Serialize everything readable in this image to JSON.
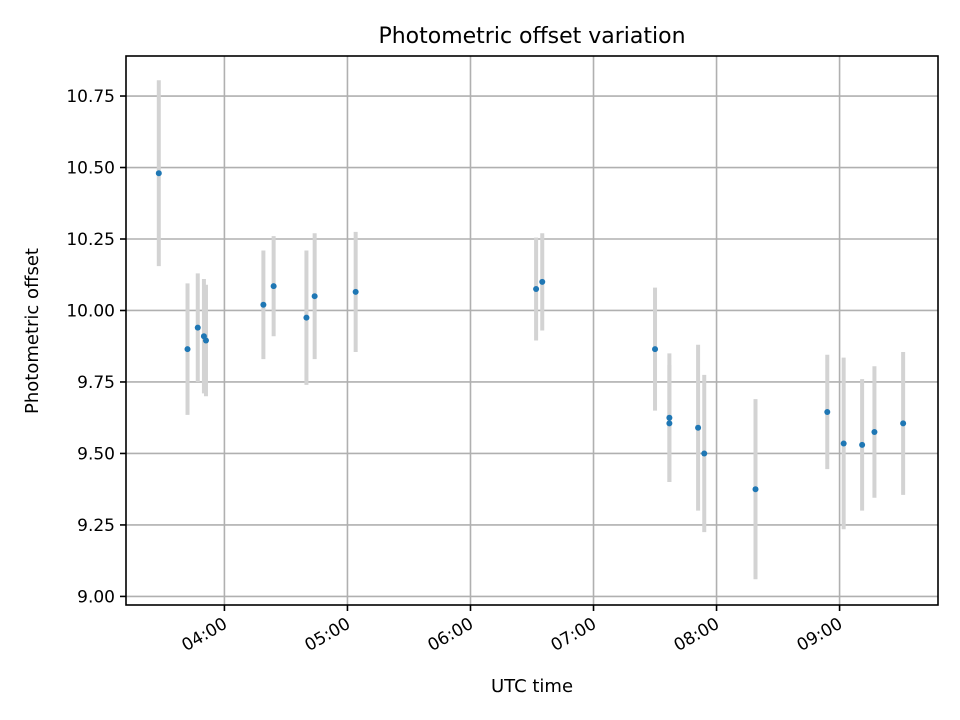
{
  "chart_data": {
    "type": "scatter",
    "title": "Photometric offset variation",
    "xlabel": "UTC time",
    "ylabel": "Photometric offset",
    "xlim": [
      "03:12",
      "09:48"
    ],
    "ylim": [
      8.97,
      10.89
    ],
    "xticks": [
      "04:00",
      "05:00",
      "06:00",
      "07:00",
      "08:00",
      "09:00"
    ],
    "yticks": [
      "9.00",
      "9.25",
      "9.50",
      "9.75",
      "10.00",
      "10.25",
      "10.50",
      "10.75"
    ],
    "grid": true,
    "colors": {
      "point": "#1f77b4",
      "errorbar": "#d3d3d3",
      "grid": "#b0b0b0"
    },
    "points": [
      {
        "x": "03:28",
        "y": 10.48,
        "yerr": 0.325
      },
      {
        "x": "03:42",
        "y": 9.865,
        "yerr": 0.23
      },
      {
        "x": "03:47",
        "y": 9.94,
        "yerr": 0.19
      },
      {
        "x": "03:50",
        "y": 9.91,
        "yerr": 0.2
      },
      {
        "x": "03:51",
        "y": 9.895,
        "yerr": 0.195
      },
      {
        "x": "04:19",
        "y": 10.02,
        "yerr": 0.19
      },
      {
        "x": "04:24",
        "y": 10.085,
        "yerr": 0.175
      },
      {
        "x": "04:40",
        "y": 9.975,
        "yerr": 0.235
      },
      {
        "x": "04:44",
        "y": 10.05,
        "yerr": 0.22
      },
      {
        "x": "05:04",
        "y": 10.065,
        "yerr": 0.21
      },
      {
        "x": "06:32",
        "y": 10.075,
        "yerr": 0.18
      },
      {
        "x": "06:35",
        "y": 10.1,
        "yerr": 0.17
      },
      {
        "x": "07:30",
        "y": 9.865,
        "yerr": 0.215
      },
      {
        "x": "07:37",
        "y": 9.625,
        "yerr": 0.225
      },
      {
        "x": "07:37",
        "y": 9.605,
        "yerr": 0.205
      },
      {
        "x": "07:51",
        "y": 9.59,
        "yerr": 0.29
      },
      {
        "x": "07:54",
        "y": 9.5,
        "yerr": 0.275
      },
      {
        "x": "08:19",
        "y": 9.375,
        "yerr": 0.315
      },
      {
        "x": "08:54",
        "y": 9.645,
        "yerr": 0.2
      },
      {
        "x": "09:02",
        "y": 9.535,
        "yerr": 0.3
      },
      {
        "x": "09:11",
        "y": 9.53,
        "yerr": 0.23
      },
      {
        "x": "09:17",
        "y": 9.575,
        "yerr": 0.23
      },
      {
        "x": "09:31",
        "y": 9.605,
        "yerr": 0.25
      }
    ]
  }
}
